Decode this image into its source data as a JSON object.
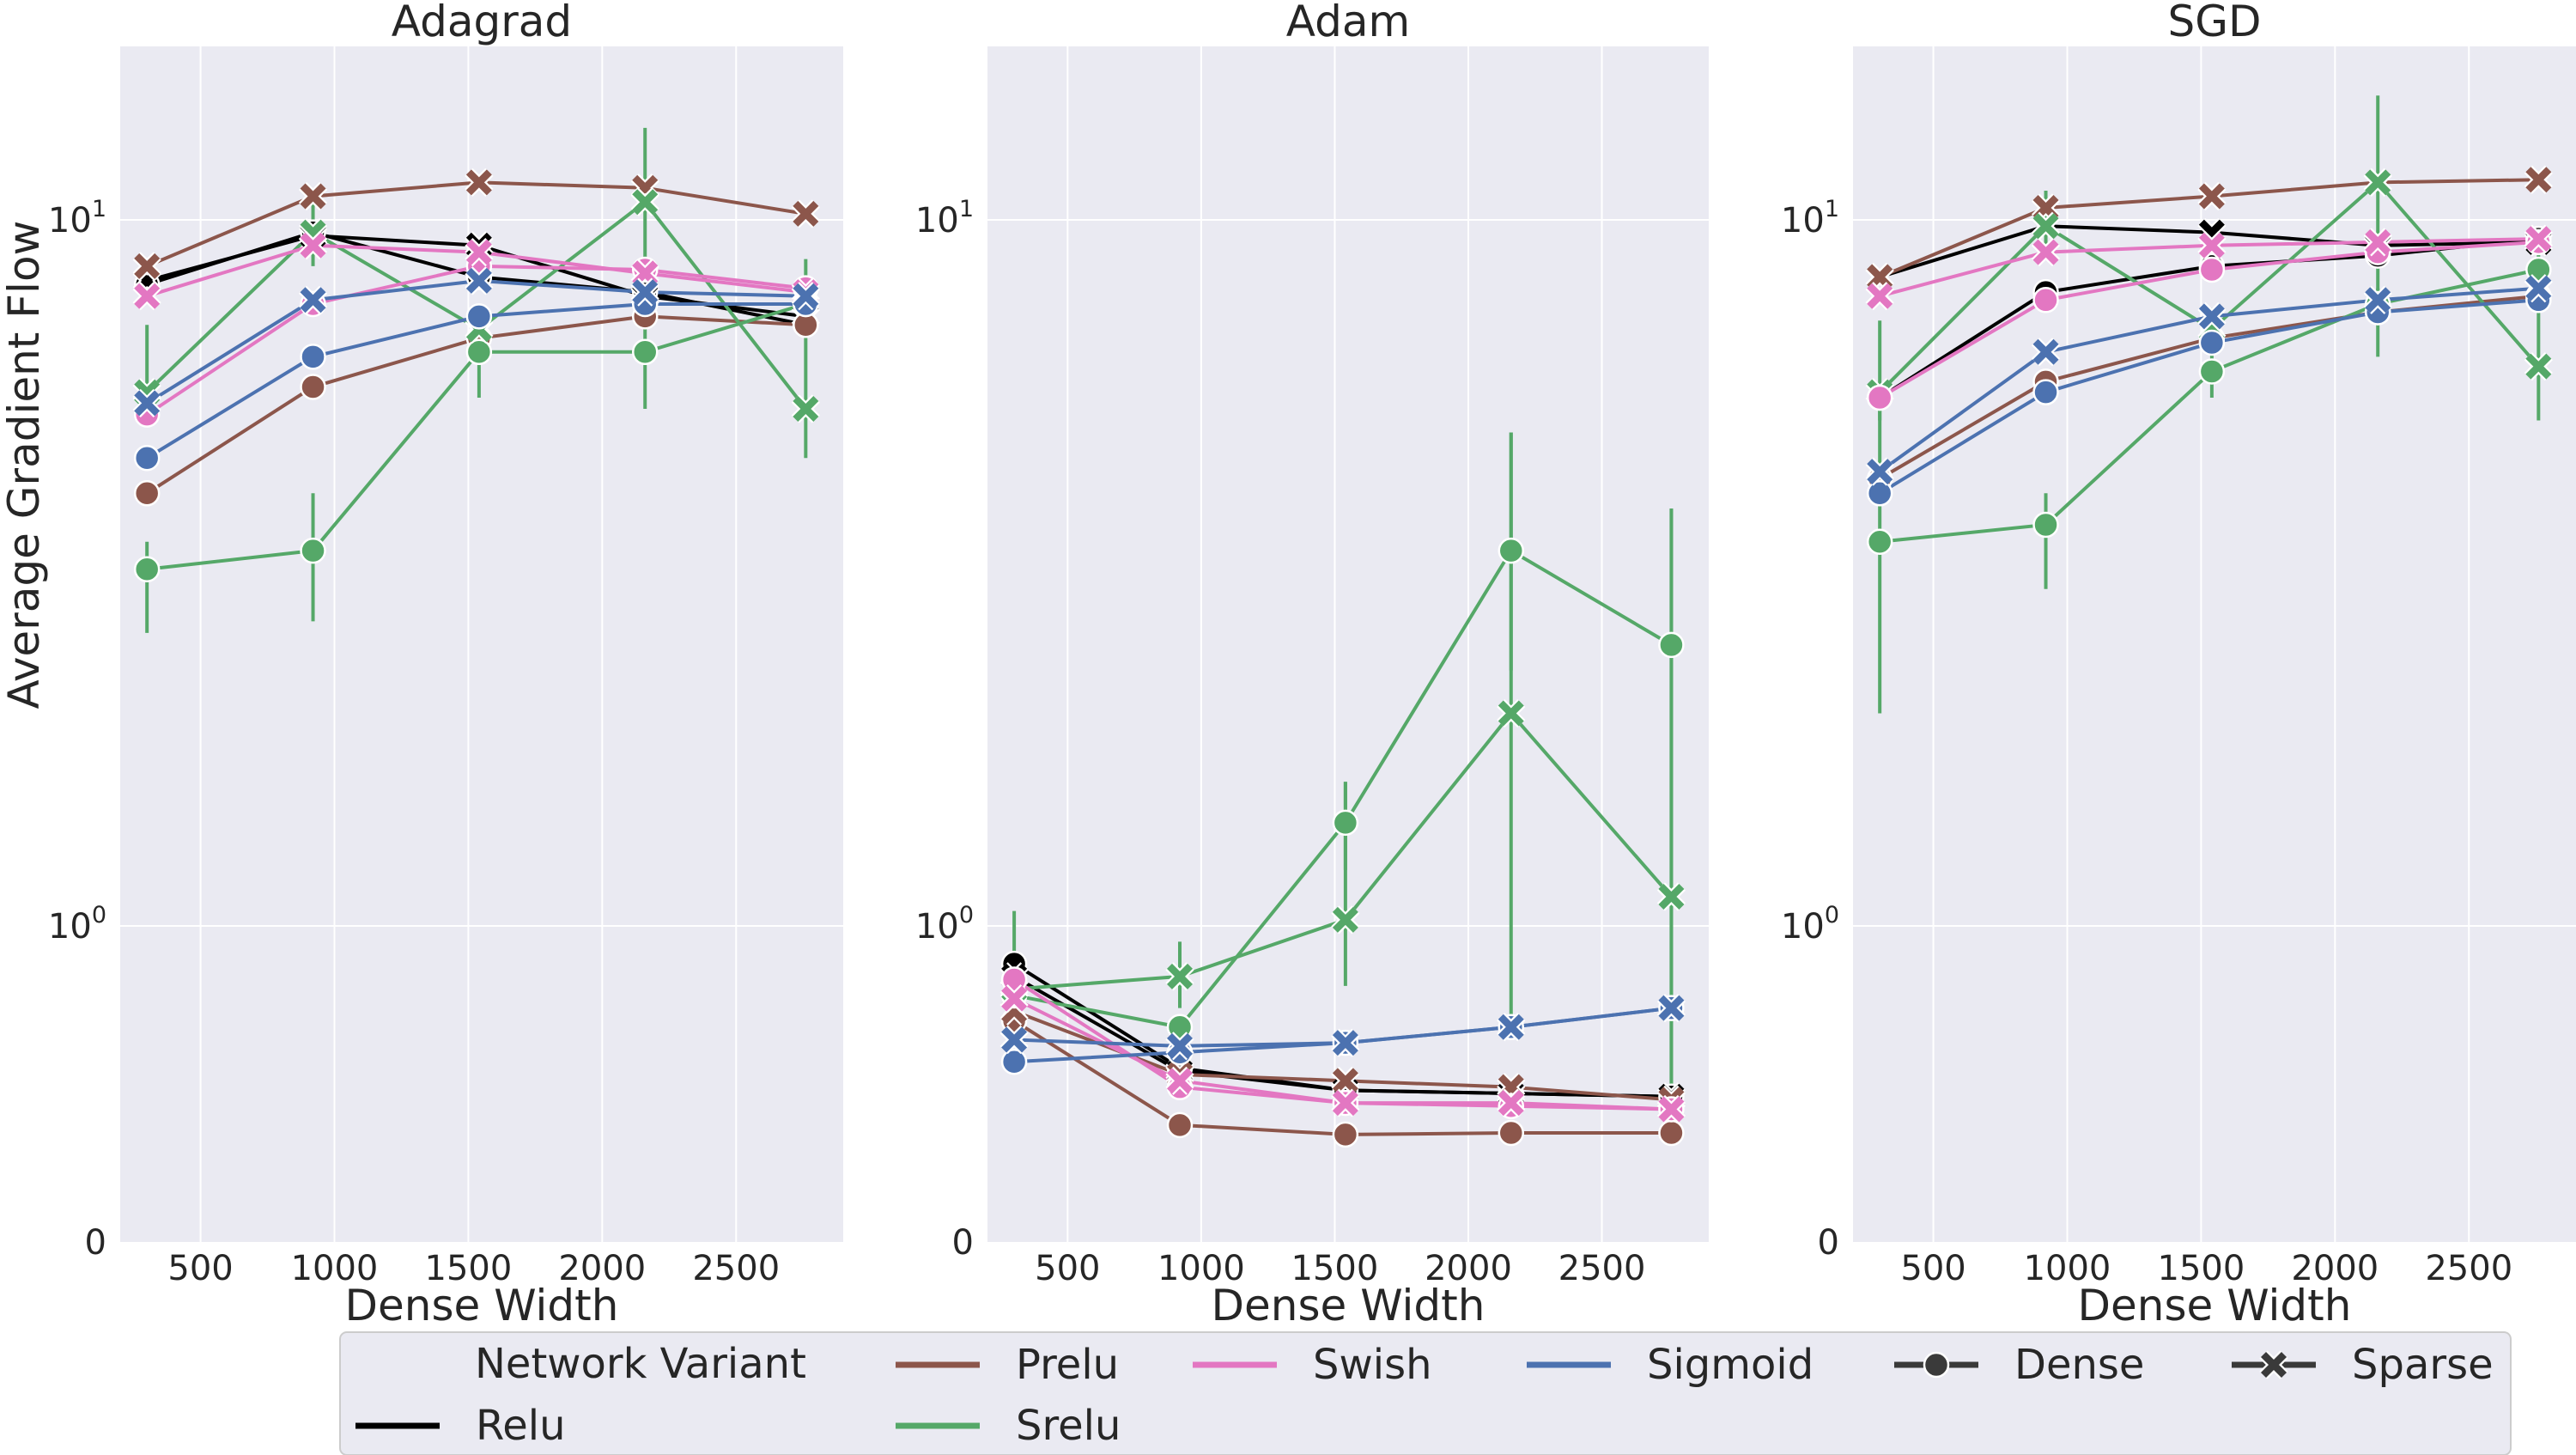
{
  "figure": {
    "ylabel": "Average Gradient Flow",
    "legend": {
      "variant_title": "Network Variant",
      "variants": [
        {
          "key": "Relu",
          "label": "Relu"
        },
        {
          "key": "Prelu",
          "label": "Prelu"
        },
        {
          "key": "Srelu",
          "label": "Srelu"
        },
        {
          "key": "Swish",
          "label": "Swish"
        },
        {
          "key": "Sigmoid",
          "label": "Sigmoid"
        }
      ],
      "styles": [
        {
          "key": "dense",
          "label": "Dense",
          "marker": "circle"
        },
        {
          "key": "sparse",
          "label": "Sparse",
          "marker": "x"
        }
      ]
    }
  },
  "colors": {
    "Relu": "#000000",
    "Prelu": "#8c564b",
    "Srelu": "#55a868",
    "Swish": "#e377c2",
    "Sigmoid": "#4c72b0",
    "panel_bg": "#eaeaf2",
    "grid": "#ffffff"
  },
  "chart_data": [
    {
      "type": "line",
      "title": "Adagrad",
      "xlabel": "Dense Width",
      "ylabel": "Average Gradient Flow",
      "yscale": "symlog",
      "xlim": [
        200,
        2900
      ],
      "ylim": [
        0,
        18
      ],
      "xticks": [
        "500",
        "1000",
        "1500",
        "2000",
        "2500"
      ],
      "yticks": [
        "0",
        "10^0",
        "10^1"
      ],
      "x": [
        300,
        920,
        1540,
        2160,
        2760
      ],
      "series": [
        {
          "variant": "Relu",
          "style": "dense",
          "values": [
            8.1,
            9.6,
            8.3,
            7.9,
            7.1
          ]
        },
        {
          "variant": "Relu",
          "style": "sparse",
          "values": [
            8.2,
            9.5,
            9.2,
            7.8,
            7.3
          ]
        },
        {
          "variant": "Prelu",
          "style": "dense",
          "values": [
            4.1,
            5.8,
            6.8,
            7.3,
            7.1
          ]
        },
        {
          "variant": "Prelu",
          "style": "sparse",
          "values": [
            8.6,
            10.8,
            11.3,
            11.1,
            10.2
          ]
        },
        {
          "variant": "Srelu",
          "style": "dense",
          "values": [
            3.2,
            3.4,
            6.5,
            6.5,
            7.6
          ],
          "err_low": [
            2.6,
            2.7,
            5.6,
            5.4,
            7.1
          ],
          "err_high": [
            3.5,
            4.1,
            7.0,
            7.4,
            8.0
          ]
        },
        {
          "variant": "Srelu",
          "style": "sparse",
          "values": [
            5.7,
            9.6,
            7.0,
            10.6,
            5.4
          ],
          "err_low": [
            5.2,
            8.6,
            6.4,
            8.6,
            4.6
          ],
          "err_high": [
            7.1,
            11.0,
            7.5,
            13.5,
            8.8
          ]
        },
        {
          "variant": "Swish",
          "style": "dense",
          "values": [
            5.3,
            7.6,
            8.6,
            8.5,
            8.0
          ]
        },
        {
          "variant": "Swish",
          "style": "sparse",
          "values": [
            7.8,
            9.2,
            9.0,
            8.4,
            7.9
          ]
        },
        {
          "variant": "Sigmoid",
          "style": "dense",
          "values": [
            4.6,
            6.4,
            7.3,
            7.6,
            7.6
          ]
        },
        {
          "variant": "Sigmoid",
          "style": "sparse",
          "values": [
            5.5,
            7.7,
            8.2,
            7.9,
            7.8
          ]
        }
      ]
    },
    {
      "type": "line",
      "title": "Adam",
      "xlabel": "Dense Width",
      "ylabel": "",
      "yscale": "symlog",
      "xlim": [
        200,
        2900
      ],
      "ylim": [
        0,
        18
      ],
      "xticks": [
        "500",
        "1000",
        "1500",
        "2000",
        "2500"
      ],
      "yticks": [
        "0",
        "10^0",
        "10^1"
      ],
      "x": [
        300,
        920,
        1540,
        2160,
        2760
      ],
      "series": [
        {
          "variant": "Relu",
          "style": "dense",
          "values": [
            0.88,
            0.55,
            0.48,
            0.47,
            0.46
          ]
        },
        {
          "variant": "Relu",
          "style": "sparse",
          "values": [
            0.84,
            0.54,
            0.48,
            0.47,
            0.46
          ]
        },
        {
          "variant": "Prelu",
          "style": "dense",
          "values": [
            0.7,
            0.37,
            0.34,
            0.345,
            0.345
          ]
        },
        {
          "variant": "Prelu",
          "style": "sparse",
          "values": [
            0.73,
            0.53,
            0.51,
            0.49,
            0.45
          ]
        },
        {
          "variant": "Srelu",
          "style": "dense",
          "values": [
            0.78,
            0.68,
            1.4,
            3.4,
            2.5
          ],
          "err_low": [
            0.72,
            0.64,
            1.2,
            2.3,
            0.46
          ],
          "err_high": [
            0.84,
            0.72,
            1.6,
            5.0,
            3.9
          ]
        },
        {
          "variant": "Srelu",
          "style": "sparse",
          "values": [
            0.8,
            0.84,
            1.02,
            2.0,
            1.1
          ],
          "err_low": [
            0.72,
            0.74,
            0.81,
            0.65,
            0.46
          ],
          "err_high": [
            1.05,
            0.95,
            1.6,
            5.0,
            3.9
          ]
        },
        {
          "variant": "Swish",
          "style": "dense",
          "values": [
            0.83,
            0.49,
            0.44,
            0.43,
            0.42
          ]
        },
        {
          "variant": "Swish",
          "style": "sparse",
          "values": [
            0.77,
            0.51,
            0.44,
            0.44,
            0.42
          ]
        },
        {
          "variant": "Sigmoid",
          "style": "dense",
          "values": [
            0.57,
            0.6,
            0.63,
            0.68,
            0.74
          ]
        },
        {
          "variant": "Sigmoid",
          "style": "sparse",
          "values": [
            0.64,
            0.62,
            0.63,
            0.68,
            0.74
          ]
        }
      ]
    },
    {
      "type": "line",
      "title": "SGD",
      "xlabel": "Dense Width",
      "ylabel": "",
      "yscale": "symlog",
      "xlim": [
        200,
        2900
      ],
      "ylim": [
        0,
        18
      ],
      "xticks": [
        "500",
        "1000",
        "1500",
        "2000",
        "2500"
      ],
      "yticks": [
        "0",
        "10^0",
        "10^1"
      ],
      "x": [
        300,
        920,
        1540,
        2160,
        2760
      ],
      "series": [
        {
          "variant": "Relu",
          "style": "dense",
          "values": [
            5.6,
            7.9,
            8.6,
            8.9,
            9.4
          ]
        },
        {
          "variant": "Relu",
          "style": "sparse",
          "values": [
            8.3,
            9.8,
            9.6,
            9.2,
            9.3
          ]
        },
        {
          "variant": "Prelu",
          "style": "dense",
          "values": [
            4.3,
            5.9,
            6.8,
            7.4,
            7.8
          ]
        },
        {
          "variant": "Prelu",
          "style": "sparse",
          "values": [
            8.3,
            10.4,
            10.8,
            11.3,
            11.4
          ]
        },
        {
          "variant": "Srelu",
          "style": "dense",
          "values": [
            3.5,
            3.7,
            6.1,
            7.6,
            8.5
          ],
          "err_low": [
            2.0,
            3.0,
            5.6,
            7.2,
            8.1
          ],
          "err_high": [
            5.6,
            4.1,
            6.8,
            8.0,
            9.0
          ]
        },
        {
          "variant": "Srelu",
          "style": "sparse",
          "values": [
            5.7,
            9.8,
            7.0,
            11.3,
            6.2
          ],
          "err_low": [
            5.2,
            8.8,
            6.5,
            6.4,
            5.2
          ],
          "err_high": [
            7.2,
            11.0,
            7.5,
            15.0,
            8.6
          ]
        },
        {
          "variant": "Swish",
          "style": "dense",
          "values": [
            5.6,
            7.7,
            8.5,
            9.0,
            9.3
          ]
        },
        {
          "variant": "Swish",
          "style": "sparse",
          "values": [
            7.8,
            9.0,
            9.2,
            9.3,
            9.4
          ]
        },
        {
          "variant": "Sigmoid",
          "style": "dense",
          "values": [
            4.1,
            5.7,
            6.7,
            7.4,
            7.7
          ]
        },
        {
          "variant": "Sigmoid",
          "style": "sparse",
          "values": [
            4.4,
            6.5,
            7.3,
            7.7,
            8.0
          ]
        }
      ]
    }
  ]
}
